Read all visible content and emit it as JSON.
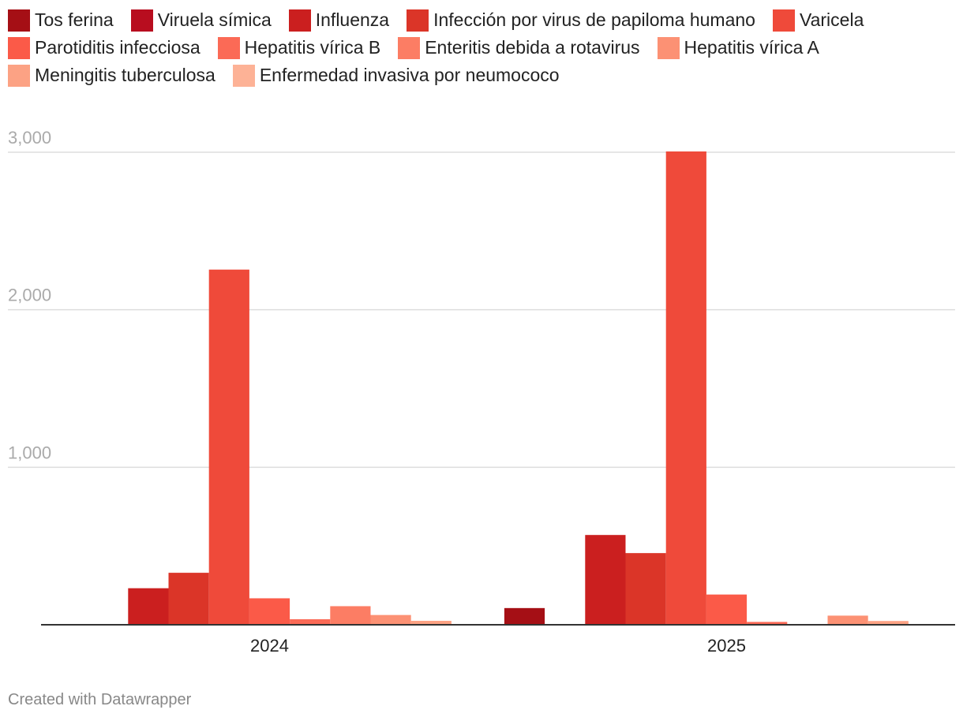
{
  "chart_data": {
    "type": "bar",
    "categories": [
      "2024",
      "2025"
    ],
    "series": [
      {
        "name": "Tos ferina",
        "color": "#a50f15",
        "values": [
          0,
          106
        ]
      },
      {
        "name": "Viruela símica",
        "color": "#b80d1f",
        "values": [
          0,
          5
        ]
      },
      {
        "name": "Influenza",
        "color": "#cb1f1f",
        "values": [
          232,
          570
        ]
      },
      {
        "name": "Infección por virus de papiloma humano",
        "color": "#db3528",
        "values": [
          330,
          455
        ]
      },
      {
        "name": "Varicela",
        "color": "#ef4a3a",
        "values": [
          2255,
          3005
        ]
      },
      {
        "name": "Parotiditis infecciosa",
        "color": "#fb5a48",
        "values": [
          168,
          192
        ]
      },
      {
        "name": "Hepatitis vírica B",
        "color": "#fb6a56",
        "values": [
          35,
          18
        ]
      },
      {
        "name": "Enteritis debida a rotavirus",
        "color": "#fc7d64",
        "values": [
          118,
          0
        ]
      },
      {
        "name": "Hepatitis vírica A",
        "color": "#fc9174",
        "values": [
          62,
          58
        ]
      },
      {
        "name": "Meningitis tuberculosa",
        "color": "#fca284",
        "values": [
          25,
          24
        ]
      },
      {
        "name": "Enfermedad invasiva por neumococo",
        "color": "#fdb296",
        "values": [
          0,
          0
        ]
      }
    ],
    "yticks": [
      "1,000",
      "2,000",
      "3,000"
    ],
    "ytick_values": [
      1000,
      2000,
      3000
    ],
    "ylim": [
      0,
      3000
    ],
    "grid": true,
    "legend": "top"
  },
  "credit": "Created with Datawrapper"
}
